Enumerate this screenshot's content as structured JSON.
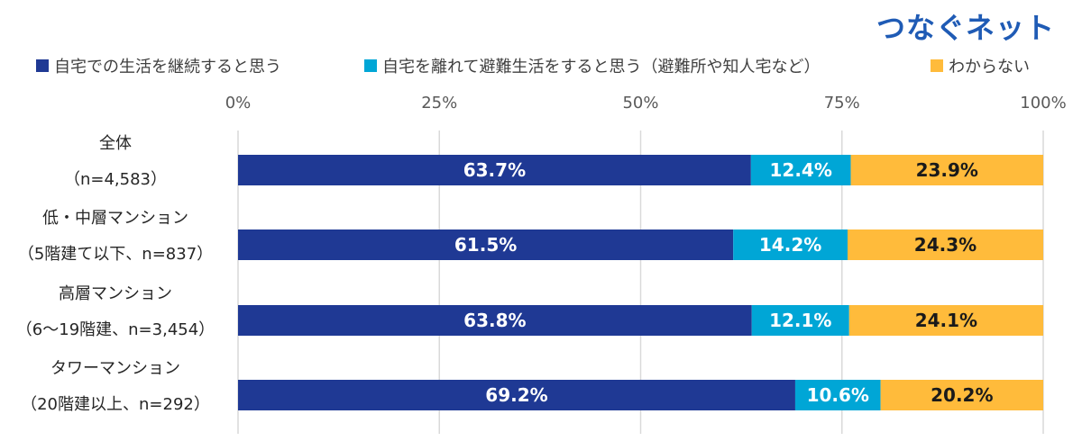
{
  "brand": "つなぐネット",
  "colors": {
    "series": [
      "#1f3994",
      "#00a6d6",
      "#ffbb3b"
    ],
    "label_text": [
      "#ffffff",
      "#ffffff",
      "#1a1a1a"
    ]
  },
  "chart_data": {
    "type": "bar",
    "orientation": "horizontal",
    "stacked": true,
    "x_ticks": [
      "0%",
      "25%",
      "50%",
      "75%",
      "100%"
    ],
    "xlim": [
      0,
      100
    ],
    "grid": true,
    "legend_position": "top",
    "categories": [
      [
        "全体",
        "（n=4,583）"
      ],
      [
        "低・中層マンション",
        "（5階建て以下、n=837）"
      ],
      [
        "高層マンション",
        "（6～19階建、n=3,454）"
      ],
      [
        "タワーマンション",
        "（20階建以上、n=292）"
      ]
    ],
    "series": [
      {
        "name": "自宅での生活を継続すると思う",
        "values": [
          63.7,
          61.5,
          63.8,
          69.2
        ],
        "labels": [
          "63.7%",
          "61.5%",
          "63.8%",
          "69.2%"
        ]
      },
      {
        "name": "自宅を離れて避難生活をすると思う（避難所や知人宅など）",
        "values": [
          12.4,
          14.2,
          12.1,
          10.6
        ],
        "labels": [
          "12.4%",
          "14.2%",
          "12.1%",
          "10.6%"
        ]
      },
      {
        "name": "わからない",
        "values": [
          23.9,
          24.3,
          24.1,
          20.2
        ],
        "labels": [
          "23.9%",
          "24.3%",
          "24.1%",
          "20.2%"
        ]
      }
    ]
  }
}
